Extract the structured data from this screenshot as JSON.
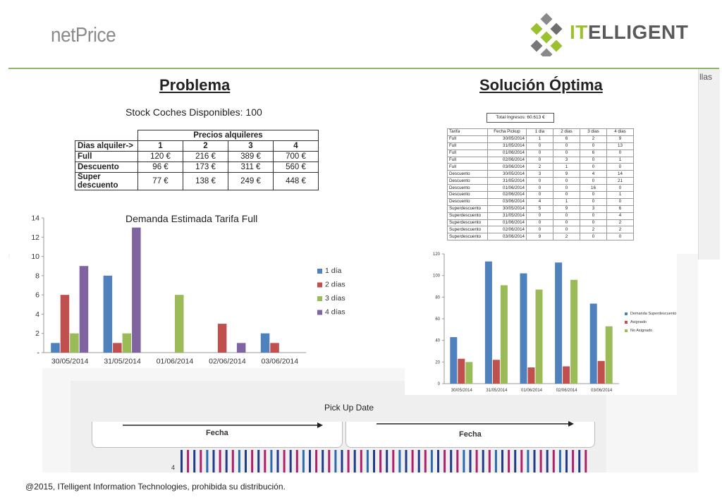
{
  "header": {
    "brand": "netPrice",
    "logo_text_accent": "IT",
    "logo_text_rest": "ELLIGENT"
  },
  "side_strip_text": "llas",
  "problema": {
    "title": "Problema",
    "stock_text": "Stock Coches Disponibles: 100",
    "price_table": {
      "header": "Precios alquileres",
      "day_row_label": "Dias alquiler->",
      "days": [
        "1",
        "2",
        "3",
        "4"
      ],
      "rows": [
        {
          "label": "Full",
          "values": [
            "120 €",
            "216 €",
            "389 €",
            "700 €"
          ]
        },
        {
          "label": "Descuento",
          "values": [
            "96 €",
            "173 €",
            "311 €",
            "560 €"
          ]
        },
        {
          "label": "Super descuento",
          "values": [
            "77 €",
            "138 €",
            "249 €",
            "448 €"
          ]
        }
      ]
    }
  },
  "solucion": {
    "title": "Solución Óptima",
    "total": "Total Ingresos:   60.613 €",
    "table": {
      "headers": [
        "Tarifa",
        "Fecha Pickup",
        "1 dia",
        "2 dias",
        "3 dias",
        "4 dias"
      ],
      "rows": [
        [
          "Full",
          "30/05/2014",
          "1",
          "6",
          "2",
          "9"
        ],
        [
          "Full",
          "31/05/2014",
          "0",
          "0",
          "0",
          "13"
        ],
        [
          "Full",
          "01/06/2014",
          "0",
          "0",
          "6",
          "0"
        ],
        [
          "Full",
          "02/06/2014",
          "0",
          "3",
          "0",
          "1"
        ],
        [
          "Full",
          "03/06/2014",
          "2",
          "1",
          "0",
          "0"
        ],
        [
          "Descuento",
          "30/05/2014",
          "3",
          "9",
          "4",
          "14"
        ],
        [
          "Descuento",
          "31/05/2014",
          "0",
          "0",
          "0",
          "21"
        ],
        [
          "Descuento",
          "01/06/2014",
          "0",
          "0",
          "16",
          "0"
        ],
        [
          "Descuento",
          "02/06/2014",
          "0",
          "0",
          "0",
          "1"
        ],
        [
          "Descuento",
          "03/06/2014",
          "4",
          "1",
          "0",
          "0"
        ],
        [
          "Superdescuento",
          "30/05/2014",
          "5",
          "9",
          "3",
          "6"
        ],
        [
          "Superdescuento",
          "31/05/2014",
          "0",
          "0",
          "0",
          "4"
        ],
        [
          "Superdescuento",
          "01/06/2014",
          "0",
          "0",
          "0",
          "2"
        ],
        [
          "Superdescuento",
          "02/06/2014",
          "0",
          "0",
          "2",
          "2"
        ],
        [
          "Superdescuento",
          "03/06/2014",
          "9",
          "2",
          "0",
          "0"
        ]
      ]
    }
  },
  "bottom": {
    "pickup_label": "Pick Up Date",
    "fecha_left": "Fecha",
    "fecha_right": "Fecha",
    "partial_tick": "4"
  },
  "footer": "@2015, ITelligent Information Technologies, prohibida su distribución.",
  "chart_data": [
    {
      "type": "bar",
      "title": "Demanda Estimada Tarifa Full",
      "categories": [
        "30/05/2014",
        "31/05/2014",
        "01/06/2014",
        "02/06/2014",
        "03/06/2014"
      ],
      "series": [
        {
          "name": "1 día",
          "color": "#4f81bd",
          "values": [
            1,
            8,
            0,
            0,
            2
          ]
        },
        {
          "name": "2 días",
          "color": "#c0504d",
          "values": [
            6,
            1,
            0,
            3,
            1
          ]
        },
        {
          "name": "3 días",
          "color": "#9bbb59",
          "values": [
            2,
            2,
            6,
            0,
            0
          ]
        },
        {
          "name": "4 días",
          "color": "#8064a2",
          "values": [
            9,
            13,
            0,
            1,
            0
          ]
        }
      ],
      "ylim": [
        0,
        14
      ],
      "yticks": [
        "-",
        "2",
        "4",
        "6",
        "8",
        "10",
        "12",
        "14"
      ],
      "grid": false,
      "legend": "right"
    },
    {
      "type": "bar",
      "categories": [
        "30/05/2014",
        "31/05/2014",
        "01/06/2014",
        "02/06/2014",
        "03/06/2014"
      ],
      "series": [
        {
          "name": "Demanda Superdescuento",
          "color": "#4f81bd",
          "values": [
            43,
            113,
            102,
            112,
            74
          ]
        },
        {
          "name": "Asignado",
          "color": "#c0504d",
          "values": [
            23,
            22,
            15,
            16,
            21
          ]
        },
        {
          "name": "No Asignado",
          "color": "#9bbb59",
          "values": [
            20,
            91,
            87,
            96,
            53
          ]
        }
      ],
      "ylim": [
        0,
        120
      ],
      "yticks": [
        "0",
        "20",
        "40",
        "60",
        "80",
        "100",
        "120"
      ],
      "grid": false,
      "legend": "right"
    }
  ]
}
